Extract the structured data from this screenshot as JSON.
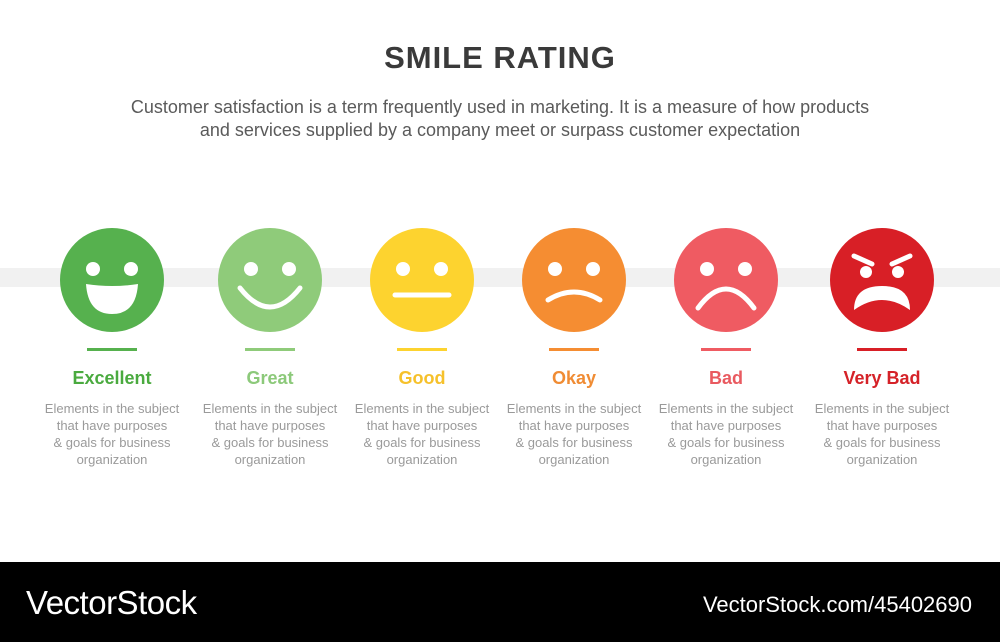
{
  "header": {
    "title": "SMILE RATING",
    "subtitle_line1": "Customer satisfaction is a term frequently used in marketing. It is a measure of how products",
    "subtitle_line2": "and services supplied by a company meet or surpass customer expectation"
  },
  "ratings": [
    {
      "label": "Excellent",
      "color": "#56b14e",
      "label_color": "#4aaa3f",
      "face": "big-smile-face-icon",
      "desc": [
        "Elements in the subject",
        "that have purposes",
        "& goals for business",
        "organization"
      ]
    },
    {
      "label": "Great",
      "color": "#8fcb7a",
      "label_color": "#8cc97a",
      "face": "smile-face-icon",
      "desc": [
        "Elements in the subject",
        "that have purposes",
        "& goals for business",
        "organization"
      ]
    },
    {
      "label": "Good",
      "color": "#fdd32f",
      "label_color": "#f6c12b",
      "face": "neutral-face-icon",
      "desc": [
        "Elements in the subject",
        "that have purposes",
        "& goals for business",
        "organization"
      ]
    },
    {
      "label": "Okay",
      "color": "#f58d32",
      "label_color": "#f08c34",
      "face": "slight-frown-face-icon",
      "desc": [
        "Elements in the subject",
        "that have purposes",
        "& goals for business",
        "organization"
      ]
    },
    {
      "label": "Bad",
      "color": "#ef5b62",
      "label_color": "#e95a60",
      "face": "sad-face-icon",
      "desc": [
        "Elements in the subject",
        "that have purposes",
        "& goals for business",
        "organization"
      ]
    },
    {
      "label": "Very Bad",
      "color": "#d81f26",
      "label_color": "#d52228",
      "face": "angry-face-icon",
      "desc": [
        "Elements in the subject",
        "that have purposes",
        "& goals for business",
        "organization"
      ]
    }
  ],
  "footer": {
    "brand": "VectorStock",
    "url": "VectorStock.com/45402690"
  }
}
